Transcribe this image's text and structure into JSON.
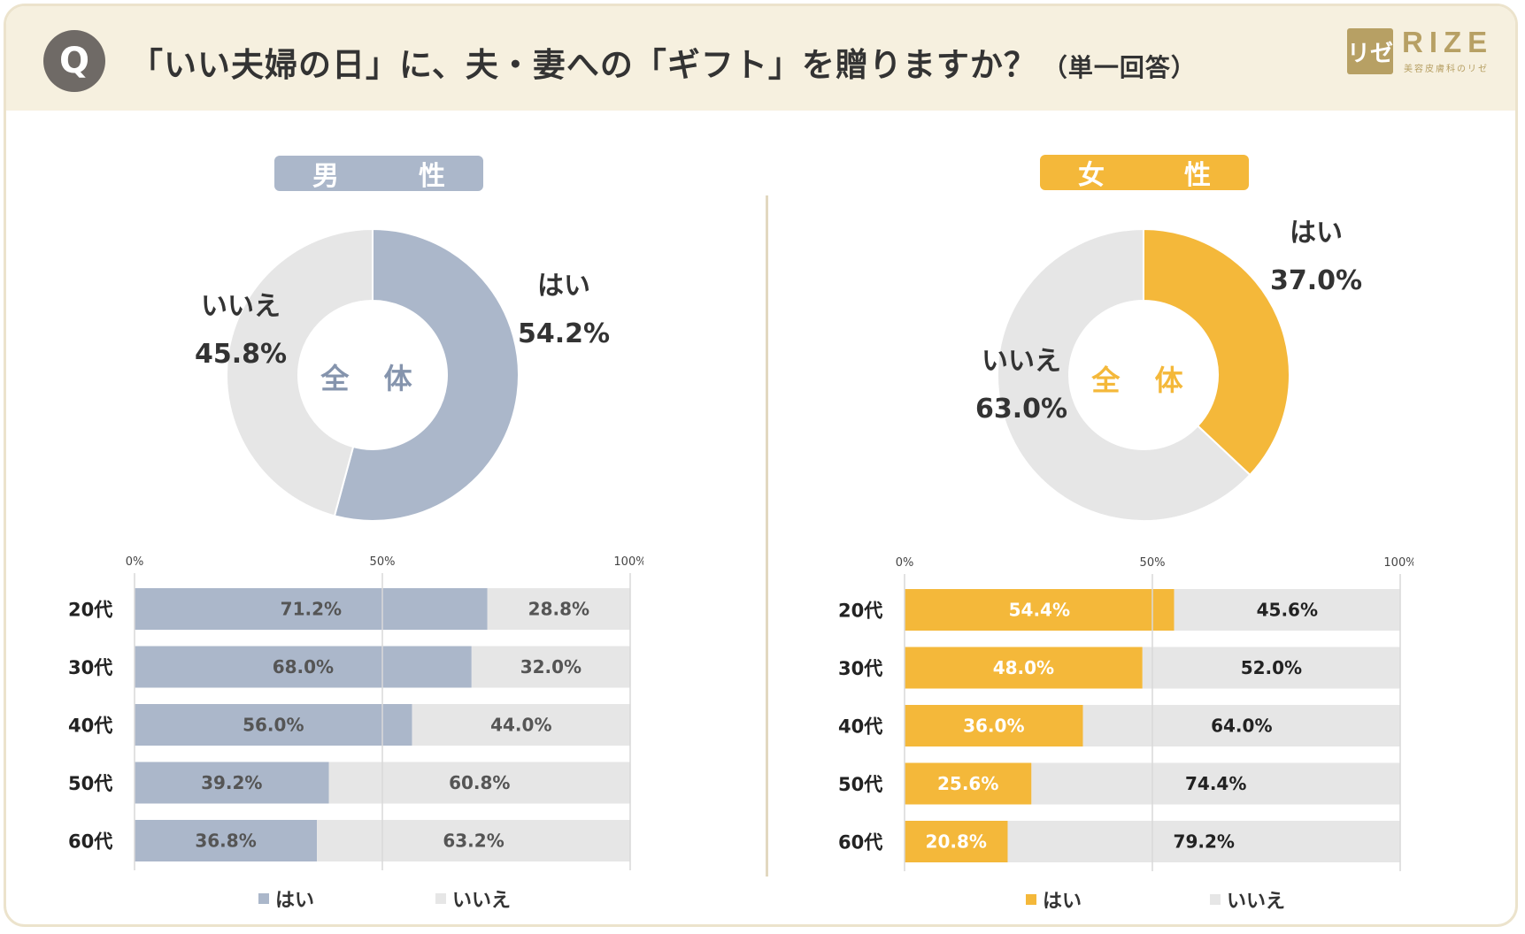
{
  "header": {
    "badge": "Q",
    "question": "「いい夫婦の日」に、夫・妻への「ギフト」を贈りますか？",
    "question_note": "（単一回答）",
    "logo_mark": "リゼ",
    "logo_name": "RIZE",
    "logo_tagline": "美容皮膚科のリゼ"
  },
  "colors": {
    "male": "#abb7ca",
    "female": "#f4b83a",
    "no": "#e6e6e6",
    "male_center_text": "#8594ad",
    "female_center_text": "#f4b83a"
  },
  "chart_data": [
    {
      "type": "pie",
      "panel": "male",
      "title": "男　性",
      "center_label": "全 体",
      "slices": [
        {
          "label": "はい",
          "value": 54.2,
          "display": "54.2%"
        },
        {
          "label": "いいえ",
          "value": 45.8,
          "display": "45.8%"
        }
      ]
    },
    {
      "type": "bar",
      "orientation": "horizontal-stacked",
      "panel": "male",
      "categories": [
        "20代",
        "30代",
        "40代",
        "50代",
        "60代"
      ],
      "xlim": [
        0,
        100
      ],
      "ticks": [
        "0%",
        "50%",
        "100%"
      ],
      "series": [
        {
          "name": "はい",
          "values": [
            71.2,
            68.0,
            56.0,
            39.2,
            36.8
          ],
          "labels": [
            "71.2%",
            "68.0%",
            "56.0%",
            "39.2%",
            "36.8%"
          ]
        },
        {
          "name": "いいえ",
          "values": [
            28.8,
            32.0,
            44.0,
            60.8,
            63.2
          ],
          "labels": [
            "28.8%",
            "32.0%",
            "44.0%",
            "60.8%",
            "63.2%"
          ]
        }
      ],
      "legend": [
        "はい",
        "いいえ"
      ]
    },
    {
      "type": "pie",
      "panel": "female",
      "title": "女　性",
      "center_label": "全 体",
      "slices": [
        {
          "label": "はい",
          "value": 37.0,
          "display": "37.0%"
        },
        {
          "label": "いいえ",
          "value": 63.0,
          "display": "63.0%"
        }
      ]
    },
    {
      "type": "bar",
      "orientation": "horizontal-stacked",
      "panel": "female",
      "categories": [
        "20代",
        "30代",
        "40代",
        "50代",
        "60代"
      ],
      "xlim": [
        0,
        100
      ],
      "ticks": [
        "0%",
        "50%",
        "100%"
      ],
      "series": [
        {
          "name": "はい",
          "values": [
            54.4,
            48.0,
            36.0,
            25.6,
            20.8
          ],
          "labels": [
            "54.4%",
            "48.0%",
            "36.0%",
            "25.6%",
            "20.8%"
          ]
        },
        {
          "name": "いいえ",
          "values": [
            45.6,
            52.0,
            64.0,
            74.4,
            79.2
          ],
          "labels": [
            "45.6%",
            "52.0%",
            "64.0%",
            "74.4%",
            "79.2%"
          ]
        }
      ],
      "legend": [
        "はい",
        "いいえ"
      ]
    }
  ]
}
